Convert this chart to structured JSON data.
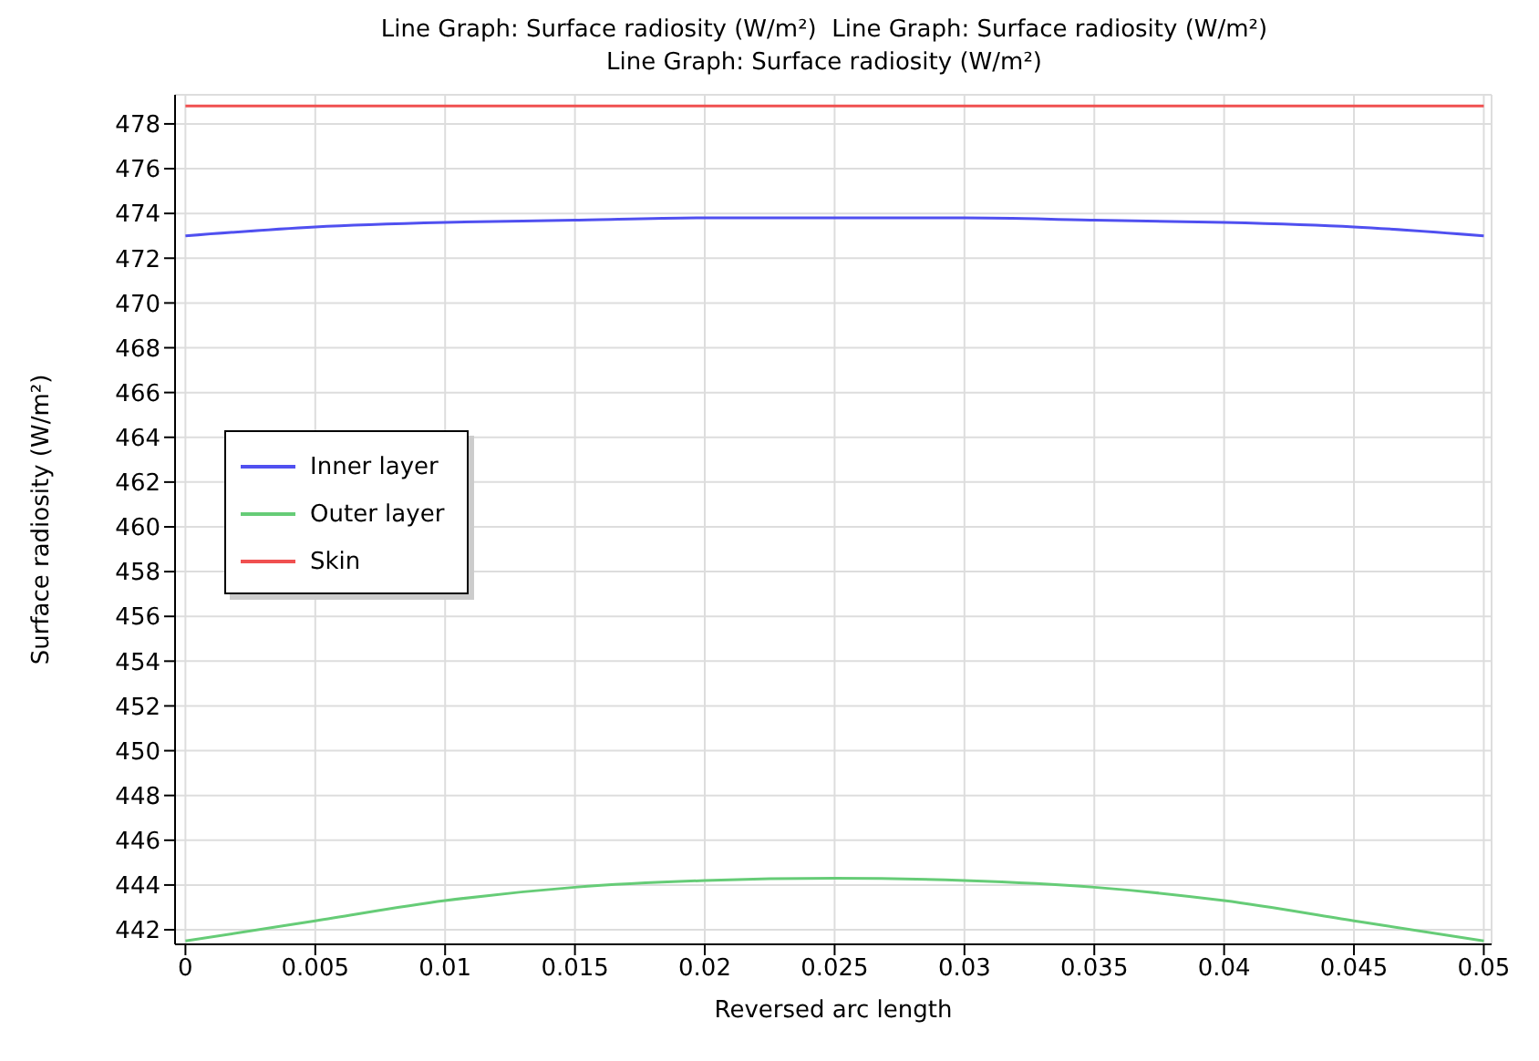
{
  "chart_data": {
    "type": "line",
    "title": "Line Graph: Surface radiosity (W/m²)  Line Graph: Surface radiosity (W/m²)\nLine Graph: Surface radiosity (W/m²)",
    "xlabel": "Reversed arc length",
    "ylabel": "Surface radiosity (W/m²)",
    "x": [
      0,
      0.005,
      0.01,
      0.015,
      0.02,
      0.025,
      0.03,
      0.035,
      0.04,
      0.045,
      0.05
    ],
    "series": [
      {
        "name": "Inner layer",
        "color": "#5050f0",
        "values": [
          473.0,
          473.4,
          473.6,
          473.7,
          473.8,
          473.8,
          473.8,
          473.7,
          473.6,
          473.4,
          473.0
        ]
      },
      {
        "name": "Outer layer",
        "color": "#66cc77",
        "values": [
          441.5,
          442.4,
          443.3,
          443.9,
          444.2,
          444.3,
          444.2,
          443.9,
          443.3,
          442.4,
          441.5
        ]
      },
      {
        "name": "Skin",
        "color": "#f05050",
        "values": [
          478.8,
          478.8,
          478.8,
          478.8,
          478.8,
          478.8,
          478.8,
          478.8,
          478.8,
          478.8,
          478.8
        ]
      }
    ],
    "xlim": [
      -0.0004,
      0.0503
    ],
    "xticks": [
      0,
      0.005,
      0.01,
      0.015,
      0.02,
      0.025,
      0.03,
      0.035,
      0.04,
      0.045,
      0.05
    ],
    "ylim": [
      441.35,
      479.3
    ],
    "yticks": [
      442,
      444,
      446,
      448,
      450,
      452,
      454,
      456,
      458,
      460,
      462,
      464,
      466,
      468,
      470,
      472,
      474,
      476,
      478
    ],
    "grid": true,
    "legend": "left",
    "marker": "none",
    "line_style": "solid"
  }
}
